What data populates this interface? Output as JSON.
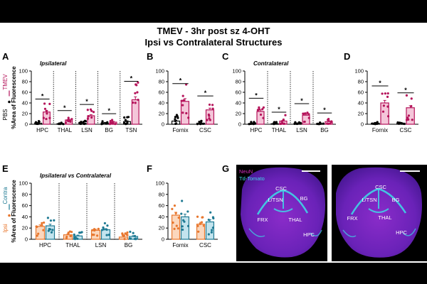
{
  "figure": {
    "title_line1": "TMEV - 3hr post sz 4-OHT",
    "title_line2": "Ipsi vs Contralateral Structures",
    "panel_labels": [
      "A",
      "B",
      "C",
      "D",
      "E",
      "F",
      "G"
    ],
    "colors": {
      "tmev": "#b5135a",
      "pbs": "#000000",
      "ipsi": "#e8772e",
      "contra": "#1f7a93",
      "neun": "#d22dbd",
      "tdtomato": "#3fd6e6"
    }
  },
  "chart_data": [
    {
      "id": "A",
      "type": "bar",
      "subtitle": "Ipsilateral",
      "ylabel": "%Area of Fluorescence",
      "ylim": [
        0,
        100
      ],
      "yticks": [
        0,
        20,
        40,
        60,
        80,
        100
      ],
      "categories": [
        "HPC",
        "THAL",
        "LSN",
        "BG",
        "TSN"
      ],
      "legend": [
        "TMEV",
        "PBS"
      ],
      "series": [
        {
          "name": "PBS",
          "values": [
            2,
            1,
            2,
            2,
            5
          ]
        },
        {
          "name": "TMEV",
          "values": [
            23,
            8,
            16,
            4,
            46
          ]
        }
      ],
      "significance": [
        "*",
        "*",
        "*",
        "*",
        "*"
      ]
    },
    {
      "id": "B",
      "type": "bar",
      "ylabel": "",
      "ylim": [
        0,
        100
      ],
      "yticks": [
        0,
        20,
        40,
        60,
        80,
        100
      ],
      "categories": [
        "Fornix",
        "CSC"
      ],
      "series": [
        {
          "name": "PBS",
          "values": [
            6,
            2
          ]
        },
        {
          "name": "TMEV",
          "values": [
            43,
            27
          ]
        }
      ],
      "significance": [
        "*",
        "*"
      ]
    },
    {
      "id": "C",
      "type": "bar",
      "subtitle": "Contralateral",
      "ylabel": "",
      "ylim": [
        0,
        100
      ],
      "yticks": [
        0,
        20,
        40,
        60,
        80,
        100
      ],
      "categories": [
        "HPC",
        "THAL",
        "LSN",
        "BG"
      ],
      "series": [
        {
          "name": "PBS",
          "values": [
            1,
            1,
            1,
            1
          ]
        },
        {
          "name": "TMEV",
          "values": [
            24,
            6,
            17,
            5
          ]
        }
      ],
      "significance": [
        "*",
        "*",
        "*",
        "*"
      ]
    },
    {
      "id": "D",
      "type": "bar",
      "ylabel": "",
      "ylim": [
        0,
        100
      ],
      "yticks": [
        0,
        20,
        40,
        60,
        80,
        100
      ],
      "categories": [
        "Fornix",
        "CSC"
      ],
      "series": [
        {
          "name": "PBS",
          "values": [
            2,
            2
          ]
        },
        {
          "name": "TMEV",
          "values": [
            40,
            31
          ]
        }
      ],
      "significance": [
        "*",
        "*"
      ]
    },
    {
      "id": "E",
      "type": "bar",
      "subtitle": "Ipsilateral vs Contralateral",
      "ylabel": "%Area of Fluorescence",
      "ylim": [
        0,
        100
      ],
      "yticks": [
        0,
        20,
        40,
        60,
        80,
        100
      ],
      "categories": [
        "HPC",
        "THAL",
        "LSN",
        "BG"
      ],
      "legend": [
        "Contra",
        "Ipsi"
      ],
      "series": [
        {
          "name": "Ipsi",
          "values": [
            23,
            8,
            16,
            4
          ]
        },
        {
          "name": "Contra",
          "values": [
            24,
            6,
            17,
            5
          ]
        }
      ]
    },
    {
      "id": "F",
      "type": "bar",
      "ylabel": "",
      "ylim": [
        0,
        100
      ],
      "yticks": [
        0,
        20,
        40,
        60,
        80,
        100
      ],
      "categories": [
        "Fornix",
        "CSC"
      ],
      "series": [
        {
          "name": "Ipsi",
          "values": [
            43,
            27
          ]
        },
        {
          "name": "Contra",
          "values": [
            40,
            31
          ]
        }
      ]
    }
  ],
  "micrograph": {
    "legend": [
      "NeuN",
      "Td-Tomato"
    ],
    "left_labels": [
      "CSC",
      "L/TSN",
      "BG",
      "FRX",
      "THAL",
      "HPC"
    ],
    "right_labels": [
      "CSC",
      "L/TSN",
      "BG",
      "FRX",
      "THAL",
      "HPC"
    ]
  }
}
